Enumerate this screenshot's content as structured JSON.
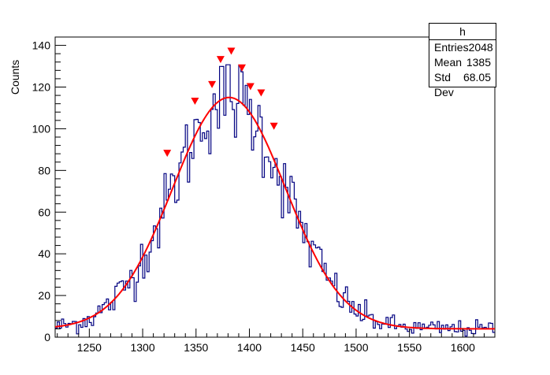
{
  "chart_data": {
    "type": "histogram",
    "ylabel": "Counts",
    "xlabel": "",
    "xlim": [
      1218,
      1630
    ],
    "ylim": [
      0,
      144
    ],
    "x_ticks": [
      1250,
      1300,
      1350,
      1400,
      1450,
      1500,
      1550,
      1600
    ],
    "y_ticks": [
      0,
      20,
      40,
      60,
      80,
      100,
      120,
      140
    ],
    "bin_width": 2,
    "hist_color": "#000080",
    "fit_color": "#ff0000",
    "marker_color": "#ff0000",
    "fit": {
      "type": "gaussian+constant",
      "amplitude": 111,
      "mean": 1381,
      "sigma": 53,
      "background": 4
    },
    "peak_markers": [
      {
        "x": 1323,
        "y": 88
      },
      {
        "x": 1349,
        "y": 113
      },
      {
        "x": 1365,
        "y": 121
      },
      {
        "x": 1373,
        "y": 133
      },
      {
        "x": 1383,
        "y": 137
      },
      {
        "x": 1393,
        "y": 129
      },
      {
        "x": 1401,
        "y": 120
      },
      {
        "x": 1411,
        "y": 117
      },
      {
        "x": 1423,
        "y": 101
      }
    ],
    "stats": {
      "title": "h",
      "rows": [
        {
          "label": "Entries",
          "value": "2048"
        },
        {
          "label": "Mean",
          "value": "1385"
        },
        {
          "label": "Std Dev",
          "value": "68.05"
        }
      ]
    }
  }
}
